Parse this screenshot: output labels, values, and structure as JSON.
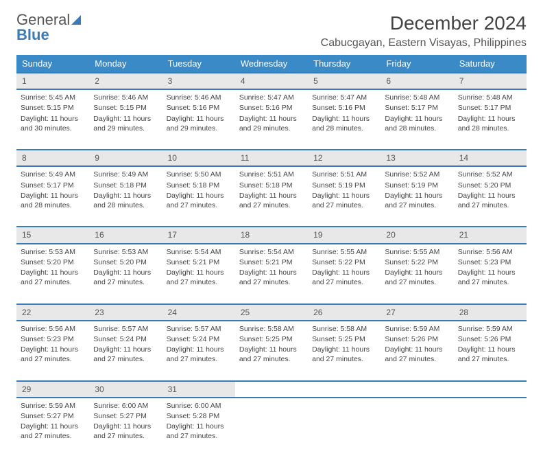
{
  "logo": {
    "word1": "General",
    "word2": "Blue"
  },
  "title": "December 2024",
  "location": "Cabucgayan, Eastern Visayas, Philippines",
  "colors": {
    "header_bg": "#3a8ac8",
    "header_text": "#ffffff",
    "row_border": "#3a7ab8",
    "daynum_bg": "#e8e8e8",
    "text": "#444444",
    "logo_gray": "#555555",
    "logo_blue": "#3a7ab8",
    "background": "#ffffff"
  },
  "weekdays": [
    "Sunday",
    "Monday",
    "Tuesday",
    "Wednesday",
    "Thursday",
    "Friday",
    "Saturday"
  ],
  "weeks": [
    [
      {
        "n": "1",
        "sr": "5:45 AM",
        "ss": "5:15 PM",
        "dl": "11 hours and 30 minutes."
      },
      {
        "n": "2",
        "sr": "5:46 AM",
        "ss": "5:15 PM",
        "dl": "11 hours and 29 minutes."
      },
      {
        "n": "3",
        "sr": "5:46 AM",
        "ss": "5:16 PM",
        "dl": "11 hours and 29 minutes."
      },
      {
        "n": "4",
        "sr": "5:47 AM",
        "ss": "5:16 PM",
        "dl": "11 hours and 29 minutes."
      },
      {
        "n": "5",
        "sr": "5:47 AM",
        "ss": "5:16 PM",
        "dl": "11 hours and 28 minutes."
      },
      {
        "n": "6",
        "sr": "5:48 AM",
        "ss": "5:17 PM",
        "dl": "11 hours and 28 minutes."
      },
      {
        "n": "7",
        "sr": "5:48 AM",
        "ss": "5:17 PM",
        "dl": "11 hours and 28 minutes."
      }
    ],
    [
      {
        "n": "8",
        "sr": "5:49 AM",
        "ss": "5:17 PM",
        "dl": "11 hours and 28 minutes."
      },
      {
        "n": "9",
        "sr": "5:49 AM",
        "ss": "5:18 PM",
        "dl": "11 hours and 28 minutes."
      },
      {
        "n": "10",
        "sr": "5:50 AM",
        "ss": "5:18 PM",
        "dl": "11 hours and 27 minutes."
      },
      {
        "n": "11",
        "sr": "5:51 AM",
        "ss": "5:18 PM",
        "dl": "11 hours and 27 minutes."
      },
      {
        "n": "12",
        "sr": "5:51 AM",
        "ss": "5:19 PM",
        "dl": "11 hours and 27 minutes."
      },
      {
        "n": "13",
        "sr": "5:52 AM",
        "ss": "5:19 PM",
        "dl": "11 hours and 27 minutes."
      },
      {
        "n": "14",
        "sr": "5:52 AM",
        "ss": "5:20 PM",
        "dl": "11 hours and 27 minutes."
      }
    ],
    [
      {
        "n": "15",
        "sr": "5:53 AM",
        "ss": "5:20 PM",
        "dl": "11 hours and 27 minutes."
      },
      {
        "n": "16",
        "sr": "5:53 AM",
        "ss": "5:20 PM",
        "dl": "11 hours and 27 minutes."
      },
      {
        "n": "17",
        "sr": "5:54 AM",
        "ss": "5:21 PM",
        "dl": "11 hours and 27 minutes."
      },
      {
        "n": "18",
        "sr": "5:54 AM",
        "ss": "5:21 PM",
        "dl": "11 hours and 27 minutes."
      },
      {
        "n": "19",
        "sr": "5:55 AM",
        "ss": "5:22 PM",
        "dl": "11 hours and 27 minutes."
      },
      {
        "n": "20",
        "sr": "5:55 AM",
        "ss": "5:22 PM",
        "dl": "11 hours and 27 minutes."
      },
      {
        "n": "21",
        "sr": "5:56 AM",
        "ss": "5:23 PM",
        "dl": "11 hours and 27 minutes."
      }
    ],
    [
      {
        "n": "22",
        "sr": "5:56 AM",
        "ss": "5:23 PM",
        "dl": "11 hours and 27 minutes."
      },
      {
        "n": "23",
        "sr": "5:57 AM",
        "ss": "5:24 PM",
        "dl": "11 hours and 27 minutes."
      },
      {
        "n": "24",
        "sr": "5:57 AM",
        "ss": "5:24 PM",
        "dl": "11 hours and 27 minutes."
      },
      {
        "n": "25",
        "sr": "5:58 AM",
        "ss": "5:25 PM",
        "dl": "11 hours and 27 minutes."
      },
      {
        "n": "26",
        "sr": "5:58 AM",
        "ss": "5:25 PM",
        "dl": "11 hours and 27 minutes."
      },
      {
        "n": "27",
        "sr": "5:59 AM",
        "ss": "5:26 PM",
        "dl": "11 hours and 27 minutes."
      },
      {
        "n": "28",
        "sr": "5:59 AM",
        "ss": "5:26 PM",
        "dl": "11 hours and 27 minutes."
      }
    ],
    [
      {
        "n": "29",
        "sr": "5:59 AM",
        "ss": "5:27 PM",
        "dl": "11 hours and 27 minutes."
      },
      {
        "n": "30",
        "sr": "6:00 AM",
        "ss": "5:27 PM",
        "dl": "11 hours and 27 minutes."
      },
      {
        "n": "31",
        "sr": "6:00 AM",
        "ss": "5:28 PM",
        "dl": "11 hours and 27 minutes."
      },
      null,
      null,
      null,
      null
    ]
  ],
  "labels": {
    "sunrise": "Sunrise:",
    "sunset": "Sunset:",
    "daylight": "Daylight:"
  }
}
